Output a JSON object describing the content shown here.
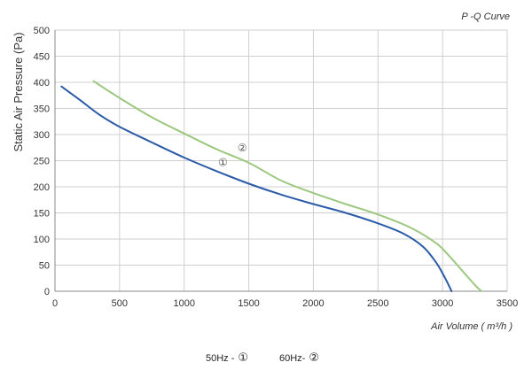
{
  "chart_data": {
    "type": "line",
    "title": "P -Q Curve",
    "xlabel": "Air Volume ( m³/h )",
    "ylabel": "Static Air Pressure  (Pa)",
    "xlim": [
      0,
      3500
    ],
    "ylim": [
      0,
      500
    ],
    "x_ticks": [
      0,
      500,
      1000,
      1500,
      2000,
      2500,
      3000,
      3500
    ],
    "y_ticks": [
      0,
      50,
      100,
      150,
      200,
      250,
      300,
      350,
      400,
      450,
      500
    ],
    "grid": true,
    "series": [
      {
        "name": "①",
        "color": "#2b5aa8",
        "x": [
          50,
          200,
          350,
          500,
          750,
          1000,
          1250,
          1500,
          1750,
          2000,
          2250,
          2500,
          2700,
          2850,
          2950,
          3020,
          3070
        ],
        "y": [
          392,
          365,
          337,
          315,
          285,
          256,
          230,
          206,
          185,
          167,
          150,
          130,
          110,
          85,
          55,
          25,
          0
        ]
      },
      {
        "name": "②",
        "color": "#9cc77e",
        "x": [
          300,
          500,
          750,
          1000,
          1250,
          1500,
          1750,
          2000,
          2250,
          2500,
          2750,
          2950,
          3050,
          3150,
          3250,
          3300
        ],
        "y": [
          402,
          370,
          333,
          302,
          272,
          246,
          212,
          188,
          167,
          147,
          122,
          92,
          68,
          40,
          12,
          0
        ]
      }
    ],
    "curve_labels": [
      {
        "text": "①",
        "x": 1300,
        "y": 240
      },
      {
        "text": "②",
        "x": 1450,
        "y": 268
      }
    ]
  },
  "legend": [
    {
      "text": "50Hz -",
      "symbol": "①"
    },
    {
      "text": "60Hz-",
      "symbol": "②"
    }
  ]
}
